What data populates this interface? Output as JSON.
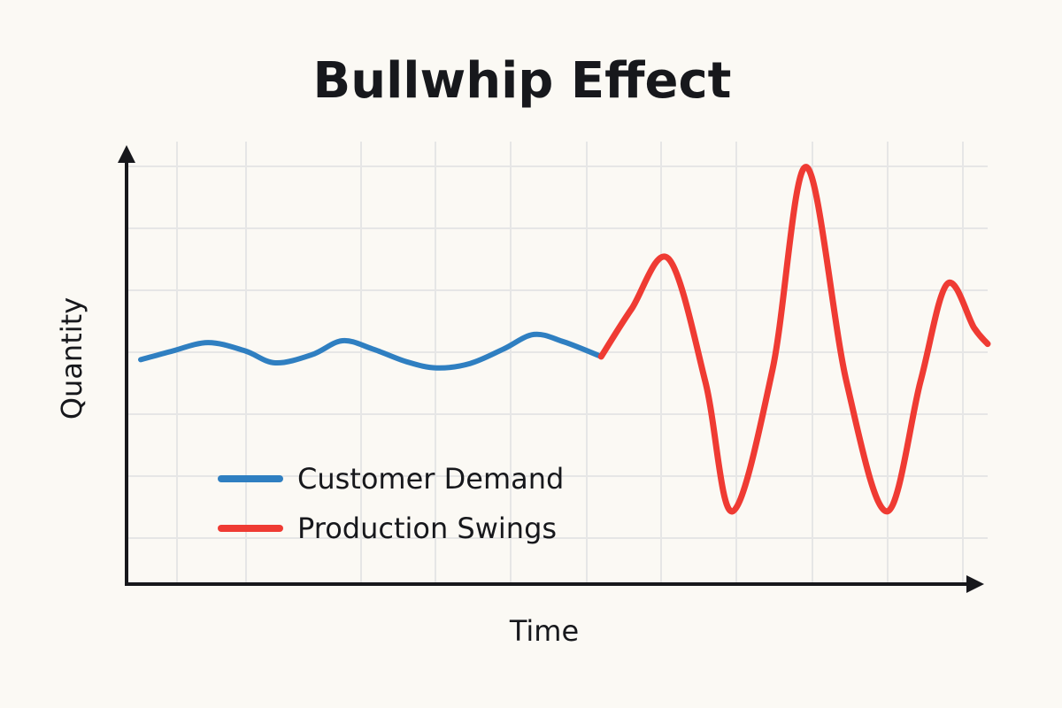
{
  "chart_data": {
    "type": "line",
    "title": "Bullwhip Effect",
    "xlabel": "Time",
    "ylabel": "Quantity",
    "grid": true,
    "legend_placement": "bottom-left",
    "xlim": [
      0,
      12.6
    ],
    "ylim": [
      0,
      7
    ],
    "series": [
      {
        "name": "Customer Demand",
        "color": "#2f7fc1",
        "points": [
          [
            0.0,
            3.55
          ],
          [
            0.45,
            3.68
          ],
          [
            1.0,
            3.82
          ],
          [
            1.55,
            3.69
          ],
          [
            2.0,
            3.5
          ],
          [
            2.55,
            3.63
          ],
          [
            3.0,
            3.85
          ],
          [
            3.45,
            3.72
          ],
          [
            3.95,
            3.52
          ],
          [
            4.4,
            3.42
          ],
          [
            4.9,
            3.49
          ],
          [
            5.4,
            3.72
          ],
          [
            5.85,
            3.95
          ],
          [
            6.3,
            3.83
          ],
          [
            6.85,
            3.6
          ]
        ]
      },
      {
        "name": "Production Swings",
        "color": "#ef3b33",
        "points": [
          [
            6.85,
            3.6
          ],
          [
            7.3,
            4.35
          ],
          [
            7.85,
            5.15
          ],
          [
            8.4,
            3.2
          ],
          [
            8.8,
            1.15
          ],
          [
            9.4,
            3.4
          ],
          [
            9.9,
            6.6
          ],
          [
            10.5,
            3.2
          ],
          [
            11.1,
            1.15
          ],
          [
            11.6,
            3.2
          ],
          [
            12.0,
            4.75
          ],
          [
            12.4,
            4.05
          ],
          [
            12.6,
            3.8
          ]
        ]
      }
    ]
  }
}
